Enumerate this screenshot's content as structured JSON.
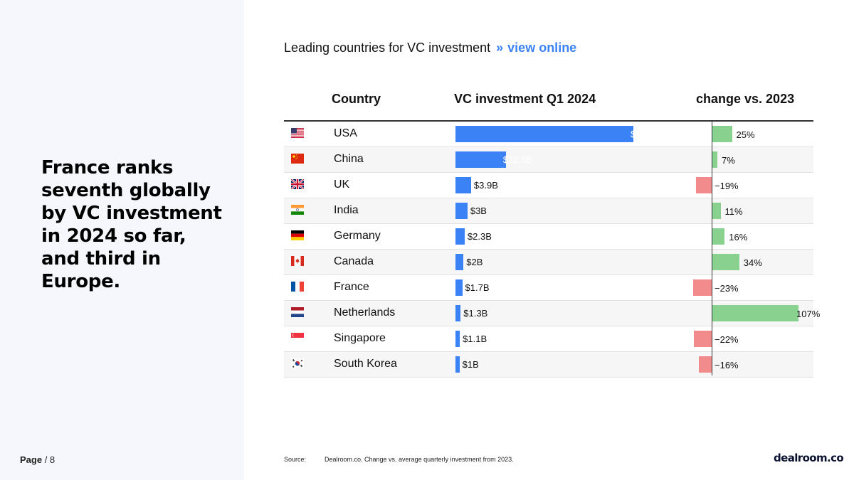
{
  "headline": "France ranks seventh globally by VC investment in 2024 so far, and third in Europe.",
  "page": {
    "label": "Page",
    "number": "/ 8"
  },
  "chart_title": {
    "text": "Leading countries for VC investment",
    "separator": "»",
    "link": "view online"
  },
  "source": {
    "label": "Source:",
    "text": "Dealroom.co. Change vs. average quarterly investment from 2023."
  },
  "logo": "dealroom.co",
  "colors": {
    "investment_bar": "#3b82f6",
    "positive_change": "#88d18e",
    "negative_change": "#f28b8b",
    "link": "#3b82f6"
  },
  "chart_data": {
    "type": "table",
    "columns": [
      "Country",
      "VC investment Q1 2024",
      "change vs. 2023"
    ],
    "rows": [
      {
        "flag": "us-flag-icon",
        "country": "USA",
        "investment": 44.5,
        "investment_label": "$44.5B",
        "change": 25,
        "change_label": "25%"
      },
      {
        "flag": "cn-flag-icon",
        "country": "China",
        "investment": 12.6,
        "investment_label": "$12.6B",
        "change": 7,
        "change_label": "7%"
      },
      {
        "flag": "gb-flag-icon",
        "country": "UK",
        "investment": 3.9,
        "investment_label": "$3.9B",
        "change": -19,
        "change_label": "−19%"
      },
      {
        "flag": "in-flag-icon",
        "country": "India",
        "investment": 3.0,
        "investment_label": "$3B",
        "change": 11,
        "change_label": "11%"
      },
      {
        "flag": "de-flag-icon",
        "country": "Germany",
        "investment": 2.3,
        "investment_label": "$2.3B",
        "change": 16,
        "change_label": "16%"
      },
      {
        "flag": "ca-flag-icon",
        "country": "Canada",
        "investment": 2.0,
        "investment_label": "$2B",
        "change": 34,
        "change_label": "34%"
      },
      {
        "flag": "fr-flag-icon",
        "country": "France",
        "investment": 1.7,
        "investment_label": "$1.7B",
        "change": -23,
        "change_label": "−23%"
      },
      {
        "flag": "nl-flag-icon",
        "country": "Netherlands",
        "investment": 1.3,
        "investment_label": "$1.3B",
        "change": 107,
        "change_label": "107%"
      },
      {
        "flag": "sg-flag-icon",
        "country": "Singapore",
        "investment": 1.1,
        "investment_label": "$1.1B",
        "change": -22,
        "change_label": "−22%"
      },
      {
        "flag": "kr-flag-icon",
        "country": "South Korea",
        "investment": 1.0,
        "investment_label": "$1B",
        "change": -16,
        "change_label": "−16%"
      }
    ]
  }
}
